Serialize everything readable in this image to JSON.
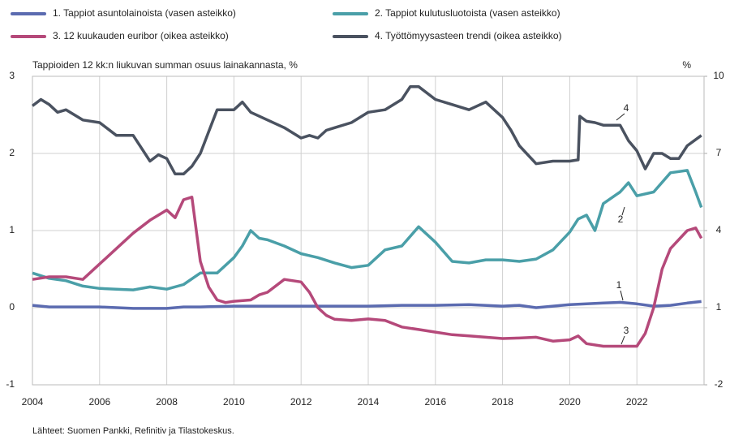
{
  "chart_data": {
    "type": "line",
    "y_label": "Tappioiden 12 kk:n liukuvan summan osuus lainakannasta, %",
    "y2_label": "%",
    "source": "Lähteet: Suomen Pankki, Refinitiv ja Tilastokeskus.",
    "xlim": [
      2004,
      2024
    ],
    "xticks": [
      2004,
      2006,
      2008,
      2010,
      2012,
      2014,
      2016,
      2018,
      2020,
      2022
    ],
    "ylim": [
      -1,
      3
    ],
    "yticks": [
      -1,
      0,
      1,
      2,
      3
    ],
    "y2lim": [
      -2,
      10
    ],
    "y2ticks": [
      -2,
      1,
      4,
      7,
      10
    ],
    "grid": true,
    "legend": "top",
    "annotations": [
      "1",
      "2",
      "3",
      "4"
    ],
    "series": [
      {
        "name": "1. Tappiot asuntolainoista (vasen asteikko)",
        "color": "#5b6bb0",
        "x": [
          2004,
          2004.5,
          2005,
          2006,
          2007,
          2008,
          2008.5,
          2009,
          2010,
          2011,
          2012,
          2013,
          2014,
          2015,
          2016,
          2017,
          2018,
          2018.5,
          2019,
          2019.5,
          2020,
          2020.5,
          2021,
          2021.5,
          2022,
          2022.5,
          2023,
          2023.5,
          2023.92
        ],
        "values": [
          0.03,
          0.01,
          0.01,
          0.01,
          -0.01,
          -0.01,
          0.01,
          0.01,
          0.02,
          0.02,
          0.02,
          0.02,
          0.02,
          0.03,
          0.03,
          0.04,
          0.02,
          0.03,
          0.0,
          0.02,
          0.04,
          0.05,
          0.06,
          0.07,
          0.05,
          0.02,
          0.03,
          0.06,
          0.08
        ]
      },
      {
        "name": "2. Tappiot kulutusluotoista (vasen asteikko)",
        "color": "#4a9fa8",
        "x": [
          2004,
          2004.5,
          2005,
          2005.5,
          2006,
          2006.5,
          2007,
          2007.5,
          2008,
          2008.5,
          2009,
          2009.5,
          2010,
          2010.25,
          2010.5,
          2010.75,
          2011,
          2011.5,
          2012,
          2012.5,
          2013,
          2013.5,
          2014,
          2014.5,
          2015,
          2015.5,
          2016,
          2016.5,
          2017,
          2017.5,
          2018,
          2018.5,
          2019,
          2019.5,
          2020,
          2020.25,
          2020.5,
          2020.75,
          2021,
          2021.5,
          2021.75,
          2022,
          2022.5,
          2023,
          2023.5,
          2023.75,
          2023.92
        ],
        "values": [
          0.45,
          0.38,
          0.35,
          0.28,
          0.25,
          0.24,
          0.23,
          0.27,
          0.24,
          0.3,
          0.45,
          0.45,
          0.65,
          0.8,
          1.0,
          0.9,
          0.88,
          0.8,
          0.7,
          0.65,
          0.58,
          0.52,
          0.55,
          0.75,
          0.8,
          1.05,
          0.85,
          0.6,
          0.58,
          0.62,
          0.62,
          0.6,
          0.63,
          0.75,
          0.98,
          1.15,
          1.2,
          1.0,
          1.35,
          1.5,
          1.62,
          1.45,
          1.5,
          1.75,
          1.78,
          1.5,
          1.3
        ]
      },
      {
        "name": "3. 12 kuukauden euribor (oikea asteikko)",
        "color": "#b5497a",
        "axis": "y2",
        "x": [
          2004,
          2004.5,
          2005,
          2005.5,
          2006,
          2006.5,
          2007,
          2007.5,
          2008,
          2008.25,
          2008.5,
          2008.75,
          2009,
          2009.25,
          2009.5,
          2009.75,
          2010,
          2010.5,
          2010.75,
          2011,
          2011.5,
          2012,
          2012.25,
          2012.5,
          2012.75,
          2013,
          2013.5,
          2014,
          2014.5,
          2015,
          2015.5,
          2016,
          2016.5,
          2017,
          2017.5,
          2018,
          2018.5,
          2019,
          2019.5,
          2020,
          2020.25,
          2020.5,
          2021,
          2021.5,
          2022,
          2022.25,
          2022.5,
          2022.75,
          2023,
          2023.5,
          2023.75,
          2023.92
        ],
        "values": [
          2.1,
          2.2,
          2.2,
          2.1,
          2.7,
          3.3,
          3.9,
          4.4,
          4.8,
          4.5,
          5.2,
          5.3,
          2.8,
          1.8,
          1.3,
          1.2,
          1.25,
          1.3,
          1.5,
          1.6,
          2.1,
          2.0,
          1.6,
          1.0,
          0.7,
          0.55,
          0.5,
          0.56,
          0.5,
          0.25,
          0.15,
          0.05,
          -0.05,
          -0.1,
          -0.15,
          -0.2,
          -0.18,
          -0.15,
          -0.3,
          -0.25,
          -0.1,
          -0.4,
          -0.5,
          -0.5,
          -0.5,
          0.0,
          1.0,
          2.5,
          3.3,
          4.0,
          4.1,
          3.7
        ]
      },
      {
        "name": "4. Työttömyysasteen trendi (oikea asteikko)",
        "color": "#4a5260",
        "axis": "y2",
        "x": [
          2004,
          2004.25,
          2004.5,
          2004.75,
          2005,
          2005.5,
          2006,
          2006.5,
          2007,
          2007.25,
          2007.5,
          2007.75,
          2008,
          2008.25,
          2008.5,
          2008.75,
          2009,
          2009.5,
          2010,
          2010.25,
          2010.5,
          2011,
          2011.5,
          2012,
          2012.25,
          2012.5,
          2012.75,
          2013,
          2013.5,
          2014,
          2014.5,
          2015,
          2015.25,
          2015.5,
          2016,
          2016.5,
          2017,
          2017.5,
          2018,
          2018.25,
          2018.5,
          2019,
          2019.5,
          2020,
          2020.25,
          2020.3,
          2020.5,
          2020.75,
          2021,
          2021.5,
          2021.75,
          2022,
          2022.25,
          2022.5,
          2022.75,
          2023,
          2023.25,
          2023.5,
          2023.92
        ],
        "values": [
          8.85,
          9.1,
          8.9,
          8.6,
          8.7,
          8.3,
          8.2,
          7.7,
          7.7,
          7.2,
          6.7,
          6.95,
          6.8,
          6.2,
          6.2,
          6.5,
          7.0,
          8.7,
          8.7,
          9.0,
          8.6,
          8.3,
          8.0,
          7.6,
          7.7,
          7.6,
          7.9,
          8.0,
          8.2,
          8.6,
          8.7,
          9.1,
          9.6,
          9.6,
          9.1,
          8.9,
          8.7,
          9.0,
          8.4,
          7.9,
          7.3,
          6.6,
          6.7,
          6.7,
          6.75,
          8.45,
          8.25,
          8.2,
          8.1,
          8.1,
          7.5,
          7.1,
          6.4,
          7.0,
          7.0,
          6.8,
          6.8,
          7.3,
          7.7
        ]
      }
    ]
  }
}
